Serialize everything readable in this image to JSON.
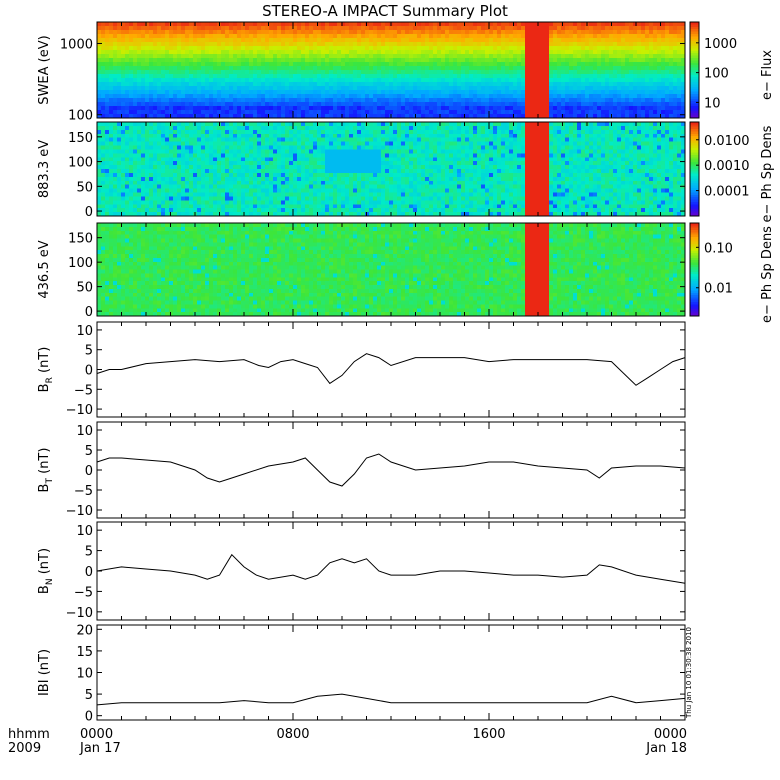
{
  "title": "STEREO-A IMPACT Summary Plot",
  "stamp": "Thu Jan 10 01:30:38 2010",
  "x_axis": {
    "left_label_1": "hhmm",
    "left_label_2": "2009",
    "ticks": [
      {
        "hour": 0,
        "time": "0000",
        "date": "Jan 17"
      },
      {
        "hour": 8,
        "time": "0800",
        "date": ""
      },
      {
        "hour": 16,
        "time": "1600",
        "date": ""
      },
      {
        "hour": 24,
        "time": "0000",
        "date": "Jan 18"
      }
    ],
    "range_hours": [
      0,
      24
    ]
  },
  "colors": {
    "line": "#000000",
    "saturated": "#e8321e",
    "gap": "#ffffff"
  },
  "chart_data": [
    {
      "type": "heatmap",
      "panel": "swea",
      "ylabel": "SWEA (eV)",
      "yscale": "log",
      "ylim": [
        90,
        2000
      ],
      "yticks": [
        {
          "v": 100,
          "label": "100"
        },
        {
          "v": 1000,
          "label": "1000"
        }
      ],
      "colorbar": {
        "label": "e− Flux",
        "scale": "log",
        "range": [
          3,
          5000
        ],
        "ticks": [
          {
            "v": 10,
            "label": "10"
          },
          {
            "v": 100,
            "label": "100"
          },
          {
            "v": 1000,
            "label": "1000"
          }
        ]
      },
      "saturated_interval_hours": [
        17.4,
        18.5
      ]
    },
    {
      "type": "heatmap",
      "panel": "pad883",
      "ylabel": "883.3 eV",
      "ylim": [
        -10,
        180
      ],
      "yticks": [
        {
          "v": 0,
          "label": "0"
        },
        {
          "v": 50,
          "label": "50"
        },
        {
          "v": 100,
          "label": "100"
        },
        {
          "v": 150,
          "label": "150"
        }
      ],
      "colorbar": {
        "label": "e− Ph Sp Dens",
        "scale": "log",
        "range": [
          1e-05,
          0.05
        ],
        "ticks": [
          {
            "v": 0.0001,
            "label": "0.0001"
          },
          {
            "v": 0.001,
            "label": "0.0010"
          },
          {
            "v": 0.01,
            "label": "0.0100"
          }
        ]
      },
      "saturated_interval_hours": [
        17.4,
        18.5
      ]
    },
    {
      "type": "heatmap",
      "panel": "pad436",
      "ylabel": "436.5 eV",
      "ylim": [
        -10,
        180
      ],
      "yticks": [
        {
          "v": 0,
          "label": "0"
        },
        {
          "v": 50,
          "label": "50"
        },
        {
          "v": 100,
          "label": "100"
        },
        {
          "v": 150,
          "label": "150"
        }
      ],
      "colorbar": {
        "label": "e− Ph Sp Dens",
        "scale": "log",
        "range": [
          0.002,
          0.4
        ],
        "ticks": [
          {
            "v": 0.01,
            "label": "0.01"
          },
          {
            "v": 0.1,
            "label": "0.10"
          }
        ]
      },
      "saturated_interval_hours": [
        17.4,
        18.5
      ]
    },
    {
      "type": "line",
      "panel": "br",
      "ylabel_main": "B",
      "ylabel_sub": "R",
      "ylabel_unit": "(nT)",
      "ylim": [
        -12,
        12
      ],
      "yticks": [
        {
          "v": -10,
          "label": "−10"
        },
        {
          "v": -5,
          "label": "−5"
        },
        {
          "v": 0,
          "label": "0"
        },
        {
          "v": 5,
          "label": "5"
        },
        {
          "v": 10,
          "label": "10"
        }
      ],
      "x": [
        0,
        0.5,
        1,
        2,
        3,
        4,
        5,
        6,
        6.6,
        7,
        7.5,
        8,
        8.5,
        9,
        9.5,
        10,
        10.5,
        11,
        11.5,
        12,
        13,
        14,
        15,
        16,
        17,
        18,
        19,
        20,
        21,
        22,
        22.5,
        23,
        23.5,
        24
      ],
      "y": [
        -1,
        0,
        0,
        1.5,
        2,
        2.5,
        2,
        2.5,
        1,
        0.5,
        2,
        2.5,
        1.5,
        0.5,
        -3.5,
        -1.5,
        2,
        4,
        3,
        1,
        3,
        3,
        3,
        2,
        2.5,
        2.5,
        2.5,
        2.5,
        2,
        -4,
        -2,
        0,
        2,
        3
      ]
    },
    {
      "type": "line",
      "panel": "bt",
      "ylabel_main": "B",
      "ylabel_sub": "T",
      "ylabel_unit": "(nT)",
      "ylim": [
        -12,
        12
      ],
      "yticks": [
        {
          "v": -10,
          "label": "−10"
        },
        {
          "v": -5,
          "label": "−5"
        },
        {
          "v": 0,
          "label": "0"
        },
        {
          "v": 5,
          "label": "5"
        },
        {
          "v": 10,
          "label": "10"
        }
      ],
      "x": [
        0,
        0.5,
        1,
        2,
        3,
        4,
        4.5,
        5,
        5.5,
        6,
        7,
        8,
        8.5,
        9,
        9.5,
        10,
        10.5,
        11,
        11.5,
        12,
        13,
        14,
        15,
        16,
        17,
        18,
        19,
        20,
        20.5,
        21,
        22,
        23,
        24
      ],
      "y": [
        2,
        3,
        3,
        2.5,
        2,
        0,
        -2,
        -3,
        -2,
        -1,
        1,
        2,
        3,
        0,
        -3,
        -4,
        -1,
        3,
        4,
        2,
        0,
        0.5,
        1,
        2,
        2,
        1,
        0.5,
        0,
        -2,
        0.5,
        1,
        1,
        0.5
      ]
    },
    {
      "type": "line",
      "panel": "bn",
      "ylabel_main": "B",
      "ylabel_sub": "N",
      "ylabel_unit": "(nT)",
      "ylim": [
        -12,
        12
      ],
      "yticks": [
        {
          "v": -10,
          "label": "−10"
        },
        {
          "v": -5,
          "label": "−5"
        },
        {
          "v": 0,
          "label": "0"
        },
        {
          "v": 5,
          "label": "5"
        },
        {
          "v": 10,
          "label": "10"
        }
      ],
      "x": [
        0,
        1,
        2,
        3,
        4,
        4.5,
        5,
        5.5,
        6,
        6.5,
        7,
        8,
        8.5,
        9,
        9.5,
        10,
        10.5,
        11,
        11.5,
        12,
        13,
        14,
        15,
        16,
        17,
        18,
        19,
        20,
        20.5,
        21,
        22,
        23,
        24
      ],
      "y": [
        0,
        1,
        0.5,
        0,
        -1,
        -2,
        -1,
        4,
        1,
        -1,
        -2,
        -1,
        -2,
        -1,
        2,
        3,
        2,
        3,
        0,
        -1,
        -1,
        0,
        0,
        -0.5,
        -1,
        -1,
        -1.5,
        -1,
        1.5,
        1,
        -1,
        -2,
        -3
      ]
    },
    {
      "type": "line",
      "panel": "bmag",
      "ylabel_main": "IBI",
      "ylabel_sub": "",
      "ylabel_unit": "(nT)",
      "ylim": [
        -1,
        21
      ],
      "yticks": [
        {
          "v": 0,
          "label": "0"
        },
        {
          "v": 5,
          "label": "5"
        },
        {
          "v": 10,
          "label": "10"
        },
        {
          "v": 15,
          "label": "15"
        },
        {
          "v": 20,
          "label": "20"
        }
      ],
      "x": [
        0,
        1,
        2,
        3,
        4,
        5,
        6,
        7,
        8,
        9,
        10,
        11,
        12,
        13,
        14,
        15,
        16,
        17,
        18,
        19,
        20,
        21,
        22,
        23,
        24
      ],
      "y": [
        2.5,
        3,
        3,
        3,
        3,
        3,
        3.5,
        3,
        3,
        4.5,
        5,
        4,
        3,
        3,
        3,
        3,
        3,
        3,
        3,
        3,
        3,
        4.5,
        3,
        3.5,
        4
      ]
    }
  ]
}
